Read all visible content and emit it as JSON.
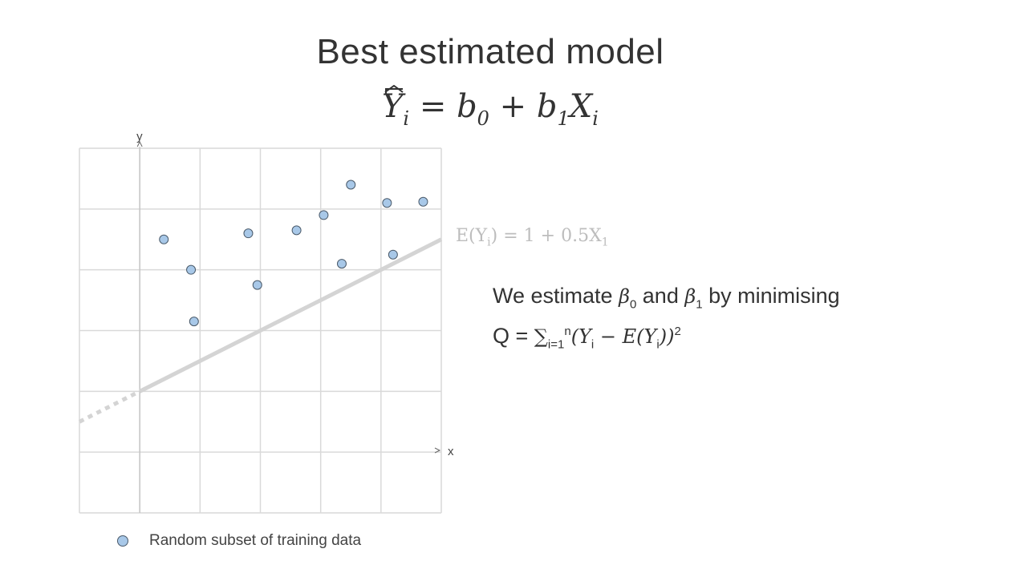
{
  "title": "Best estimated model",
  "model_formula": {
    "lhs": "Y",
    "lhs_sub": "i",
    "equals": "=",
    "b0": "b",
    "b0_sub": "0",
    "plus": "+",
    "b1": "b",
    "b1_sub": "1",
    "x": "X",
    "x_sub": "i"
  },
  "expectation_label": {
    "text_a": "E(Y",
    "sub_a": "i",
    "text_b": ") = 1 + 0.5X",
    "sub_b": "1"
  },
  "estimate_text": {
    "line1_a": "We estimate ",
    "beta": "β",
    "beta0_sub": "0",
    "and": " and ",
    "beta1_sub": "1",
    "line1_b": " by minimising",
    "q": "Q = ",
    "sum": "∑",
    "sum_sub": "i=1",
    "sum_sup": "n",
    "paren_open": "(Y",
    "y_sub": "i",
    "minus": " − E(Y",
    "ey_sub": "i",
    "paren_close": "))",
    "power": "2"
  },
  "axes": {
    "x_label": "x",
    "y_label": "y"
  },
  "legend": {
    "label": "Random subset of training data",
    "color": "#a8c8e8"
  },
  "colors": {
    "regression_line": "#d4d4d4",
    "grid": "#d9d9d9",
    "point_fill": "#a8c8e8",
    "point_stroke": "#4a5a6a"
  },
  "chart_data": {
    "type": "scatter",
    "title": "",
    "xlabel": "x",
    "ylabel": "y",
    "xlim": [
      -1,
      5
    ],
    "ylim": [
      -1,
      5
    ],
    "grid": true,
    "series": [
      {
        "name": "Random subset of training data",
        "points": [
          [
            0.4,
            3.5
          ],
          [
            0.85,
            3.0
          ],
          [
            0.9,
            2.15
          ],
          [
            1.8,
            3.6
          ],
          [
            1.95,
            2.75
          ],
          [
            2.6,
            3.65
          ],
          [
            3.05,
            3.9
          ],
          [
            3.35,
            3.1
          ],
          [
            3.5,
            4.4
          ],
          [
            4.1,
            4.1
          ],
          [
            4.2,
            3.25
          ],
          [
            4.7,
            4.12
          ]
        ]
      }
    ],
    "line": {
      "intercept": 1,
      "slope": 0.5,
      "solid_range": [
        0,
        5
      ],
      "dashed_range": [
        -1,
        0
      ]
    }
  }
}
